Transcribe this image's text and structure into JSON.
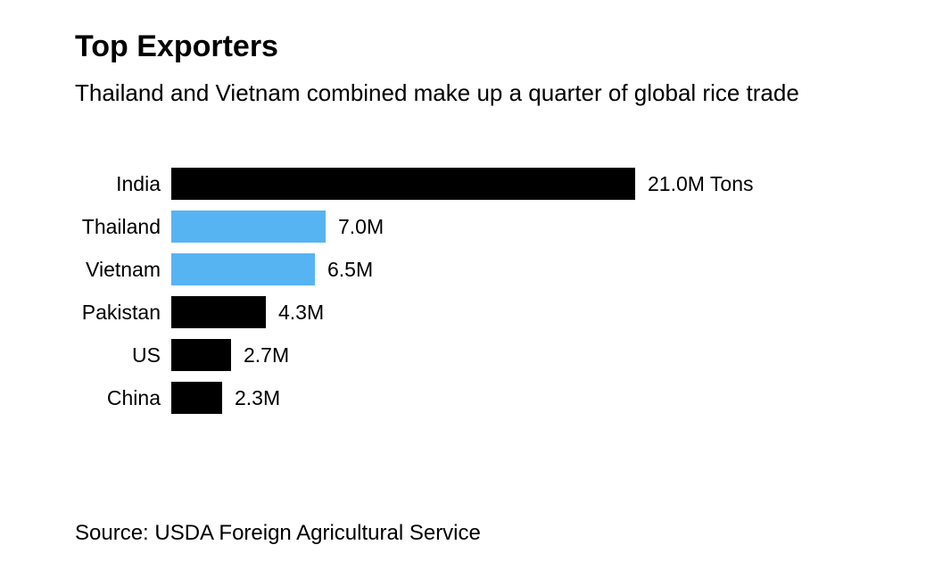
{
  "header": {
    "title": "Top Exporters",
    "subtitle": "Thailand and Vietnam combined make up a quarter of global rice trade"
  },
  "footer": {
    "source": "Source: USDA Foreign Agricultural Service"
  },
  "colors": {
    "bar_black": "#000000",
    "accent_blue": "#57B4F2",
    "background": "#FFFFFF",
    "text": "#000000"
  },
  "chart_data": {
    "type": "bar",
    "orientation": "horizontal",
    "title": "Top Exporters",
    "subtitle": "Thailand and Vietnam combined make up a quarter of global rice trade",
    "xlabel": "",
    "ylabel": "",
    "unit": "M Tons",
    "xlim": [
      0,
      21.0
    ],
    "grid": false,
    "legend": "none",
    "categories": [
      "India",
      "Thailand",
      "Vietnam",
      "Pakistan",
      "US",
      "China"
    ],
    "values": [
      21.0,
      7.0,
      6.5,
      4.3,
      2.7,
      2.3
    ],
    "value_labels": [
      "21.0M Tons",
      "7.0M",
      "6.5M",
      "4.3M",
      "2.7M",
      "2.3M"
    ],
    "bar_colors": [
      "#000000",
      "#57B4F2",
      "#57B4F2",
      "#000000",
      "#000000",
      "#000000"
    ],
    "source": "Source: USDA Foreign Agricultural Service"
  }
}
